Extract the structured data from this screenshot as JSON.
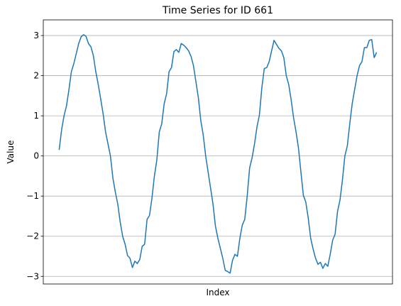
{
  "chart_data": {
    "type": "line",
    "title": "Time Series for ID 661",
    "xlabel": "Index",
    "ylabel": "Value",
    "color": "#1f77b4",
    "grid": "y",
    "xlim": [
      -6.5,
      136.5
    ],
    "ylim": [
      -3.19,
      3.39
    ],
    "yticks": [
      {
        "value": -3,
        "label": "−3"
      },
      {
        "value": -2,
        "label": "−2"
      },
      {
        "value": -1,
        "label": "−1"
      },
      0,
      1,
      2,
      3
    ],
    "values": [
      0.15,
      0.65,
      1.0,
      1.25,
      1.65,
      2.1,
      2.3,
      2.55,
      2.8,
      2.97,
      3.02,
      2.98,
      2.8,
      2.72,
      2.5,
      2.1,
      1.78,
      1.42,
      1.05,
      0.6,
      0.3,
      0.0,
      -0.55,
      -0.9,
      -1.2,
      -1.65,
      -2.0,
      -2.2,
      -2.48,
      -2.55,
      -2.78,
      -2.62,
      -2.68,
      -2.58,
      -2.25,
      -2.2,
      -1.58,
      -1.48,
      -1.05,
      -0.5,
      -0.1,
      0.6,
      0.8,
      1.3,
      1.55,
      2.1,
      2.2,
      2.6,
      2.65,
      2.58,
      2.8,
      2.76,
      2.7,
      2.62,
      2.48,
      2.25,
      1.85,
      1.45,
      0.88,
      0.52,
      0.0,
      -0.4,
      -0.8,
      -1.2,
      -1.75,
      -2.05,
      -2.3,
      -2.55,
      -2.85,
      -2.88,
      -2.92,
      -2.6,
      -2.45,
      -2.5,
      -2.05,
      -1.72,
      -1.58,
      -1.0,
      -0.3,
      -0.05,
      0.3,
      0.72,
      1.02,
      1.7,
      2.18,
      2.2,
      2.35,
      2.62,
      2.88,
      2.78,
      2.68,
      2.62,
      2.45,
      2.0,
      1.78,
      1.4,
      0.95,
      0.6,
      0.2,
      -0.4,
      -0.98,
      -1.15,
      -1.55,
      -2.05,
      -2.32,
      -2.55,
      -2.7,
      -2.65,
      -2.8,
      -2.68,
      -2.75,
      -2.45,
      -2.1,
      -1.95,
      -1.38,
      -1.1,
      -0.6,
      0.0,
      0.25,
      0.8,
      1.3,
      1.65,
      2.0,
      2.25,
      2.35,
      2.7,
      2.7,
      2.88,
      2.9,
      2.45,
      2.58
    ]
  }
}
